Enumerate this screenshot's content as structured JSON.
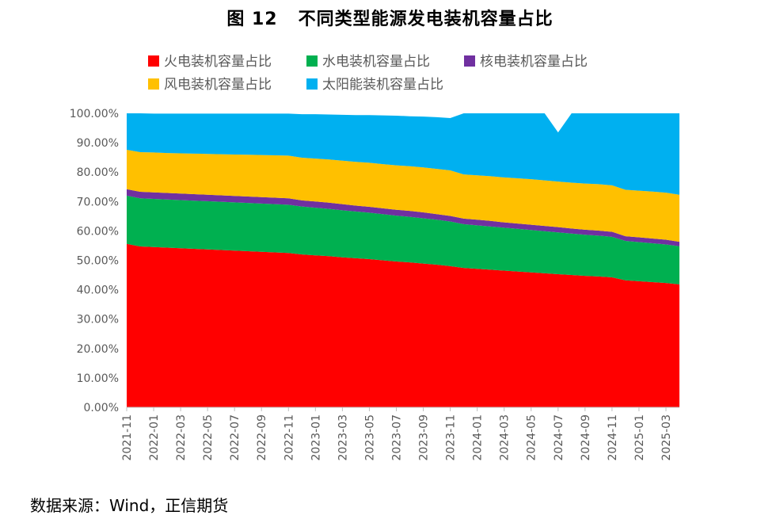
{
  "figure": {
    "number": "图 12",
    "title": "不同类型能源发电装机容量占比",
    "source": "数据来源：Wind，正信期货"
  },
  "chart_data": {
    "type": "area",
    "stacked": true,
    "title": "不同类型能源发电装机容量占比",
    "xlabel": "",
    "ylabel": "",
    "ylim": [
      0,
      100
    ],
    "yticks": [
      "0.00%",
      "10.00%",
      "20.00%",
      "30.00%",
      "40.00%",
      "50.00%",
      "60.00%",
      "70.00%",
      "80.00%",
      "90.00%",
      "100.00%"
    ],
    "x": [
      "2021-11",
      "2021-12",
      "2022-01",
      "2022-02",
      "2022-03",
      "2022-04",
      "2022-05",
      "2022-06",
      "2022-07",
      "2022-08",
      "2022-09",
      "2022-10",
      "2022-11",
      "2022-12",
      "2023-01",
      "2023-02",
      "2023-03",
      "2023-04",
      "2023-05",
      "2023-06",
      "2023-07",
      "2023-08",
      "2023-09",
      "2023-10",
      "2023-11",
      "2023-12",
      "2024-01",
      "2024-02",
      "2024-03",
      "2024-04",
      "2024-05",
      "2024-06",
      "2024-07",
      "2024-08",
      "2024-09",
      "2024-10",
      "2024-11",
      "2024-12",
      "2025-01",
      "2025-02",
      "2025-03",
      "2025-04"
    ],
    "xtick_labels": [
      "2021-11",
      "2022-01",
      "2022-03",
      "2022-05",
      "2022-07",
      "2022-09",
      "2022-11",
      "2023-01",
      "2023-03",
      "2023-05",
      "2023-07",
      "2023-09",
      "2023-11",
      "2024-01",
      "2024-03",
      "2024-05",
      "2024-07",
      "2024-09",
      "2024-11",
      "2025-01",
      "2025-03"
    ],
    "legend_position": "top",
    "series": [
      {
        "name": "火电装机容量占比",
        "color": "#ff0000",
        "values": [
          55.6,
          54.7,
          54.5,
          54.3,
          54.1,
          53.9,
          53.7,
          53.5,
          53.3,
          53.1,
          52.9,
          52.7,
          52.5,
          52.0,
          51.7,
          51.4,
          51.0,
          50.7,
          50.4,
          50.0,
          49.6,
          49.3,
          48.9,
          48.5,
          48.0,
          47.4,
          47.1,
          46.8,
          46.5,
          46.2,
          45.9,
          45.6,
          45.3,
          45.0,
          44.7,
          44.5,
          44.2,
          43.2,
          42.9,
          42.6,
          42.3,
          41.8
        ]
      },
      {
        "name": "水电装机容量占比",
        "color": "#00b050",
        "values": [
          16.4,
          16.4,
          16.4,
          16.4,
          16.4,
          16.4,
          16.4,
          16.4,
          16.4,
          16.4,
          16.4,
          16.4,
          16.4,
          16.3,
          16.2,
          16.1,
          16.0,
          15.9,
          15.8,
          15.7,
          15.6,
          15.5,
          15.4,
          15.3,
          15.2,
          14.9,
          14.8,
          14.7,
          14.6,
          14.5,
          14.4,
          14.3,
          14.2,
          14.1,
          14.0,
          13.9,
          13.8,
          13.4,
          13.3,
          13.2,
          13.1,
          13.0
        ]
      },
      {
        "name": "核电装机容量占比",
        "color": "#7030a0",
        "values": [
          2.2,
          2.2,
          2.2,
          2.2,
          2.2,
          2.2,
          2.2,
          2.2,
          2.2,
          2.2,
          2.2,
          2.2,
          2.2,
          2.1,
          2.1,
          2.1,
          2.1,
          2.0,
          2.0,
          2.0,
          2.0,
          2.0,
          2.0,
          1.9,
          1.9,
          1.9,
          1.9,
          1.9,
          1.8,
          1.8,
          1.8,
          1.8,
          1.8,
          1.7,
          1.7,
          1.7,
          1.7,
          1.6,
          1.6,
          1.6,
          1.6,
          1.5
        ]
      },
      {
        "name": "风电装机容量占比",
        "color": "#ffc000",
        "values": [
          13.4,
          13.5,
          13.6,
          13.6,
          13.7,
          13.8,
          13.9,
          14.0,
          14.1,
          14.2,
          14.3,
          14.4,
          14.5,
          14.5,
          14.6,
          14.7,
          14.8,
          14.9,
          15.0,
          15.0,
          15.1,
          15.2,
          15.3,
          15.4,
          15.5,
          15.0,
          15.1,
          15.2,
          15.3,
          15.4,
          15.5,
          15.5,
          15.5,
          15.6,
          15.7,
          15.8,
          15.8,
          15.8,
          15.9,
          16.0,
          16.0,
          16.0
        ]
      },
      {
        "name": "太阳能装机容量占比",
        "color": "#00b0f0",
        "values": [
          12.4,
          13.2,
          13.2,
          13.4,
          13.5,
          13.6,
          13.7,
          13.8,
          13.9,
          14.0,
          14.1,
          14.2,
          14.3,
          14.8,
          15.1,
          15.3,
          15.6,
          15.9,
          16.2,
          16.6,
          16.9,
          17.0,
          17.3,
          17.6,
          17.8,
          20.8,
          21.1,
          21.4,
          21.8,
          22.1,
          22.4,
          22.8,
          16.7,
          23.6,
          23.9,
          24.1,
          24.5,
          26.0,
          26.3,
          26.6,
          27.0,
          27.7
        ]
      }
    ]
  }
}
